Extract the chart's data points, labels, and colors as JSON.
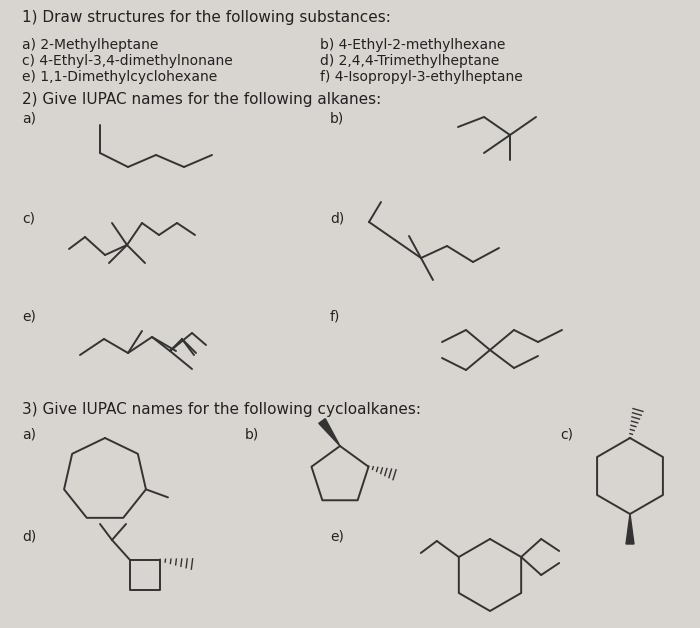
{
  "bg_color": "#d8d4d0",
  "text_color": "#222222",
  "line_color": "#333333",
  "title1": "1) Draw structures for the following substances:",
  "items1_left": [
    "a) 2-Methylheptane",
    "c) 4-Ethyl-3,4-dimethylnonane",
    "e) 1,1-Dimethylcyclohexane"
  ],
  "items1_right": [
    "b) 4-Ethyl-2-methylhexane",
    "d) 2,4,4-Trimethylheptane",
    "f) 4-Isopropyl-3-ethylheptane"
  ],
  "title2": "2) Give IUPAC names for the following alkanes:",
  "title3": "3) Give IUPAC names for the following cycloalkanes:",
  "lbl_a2": "a)",
  "lbl_b2": "b)",
  "lbl_c2": "c)",
  "lbl_d2": "d)",
  "lbl_e2": "e)",
  "lbl_f2": "f)",
  "lbl_a3": "a)",
  "lbl_b3": "b)",
  "lbl_c3": "c)",
  "lbl_d3": "d)",
  "lbl_e3": "e)"
}
